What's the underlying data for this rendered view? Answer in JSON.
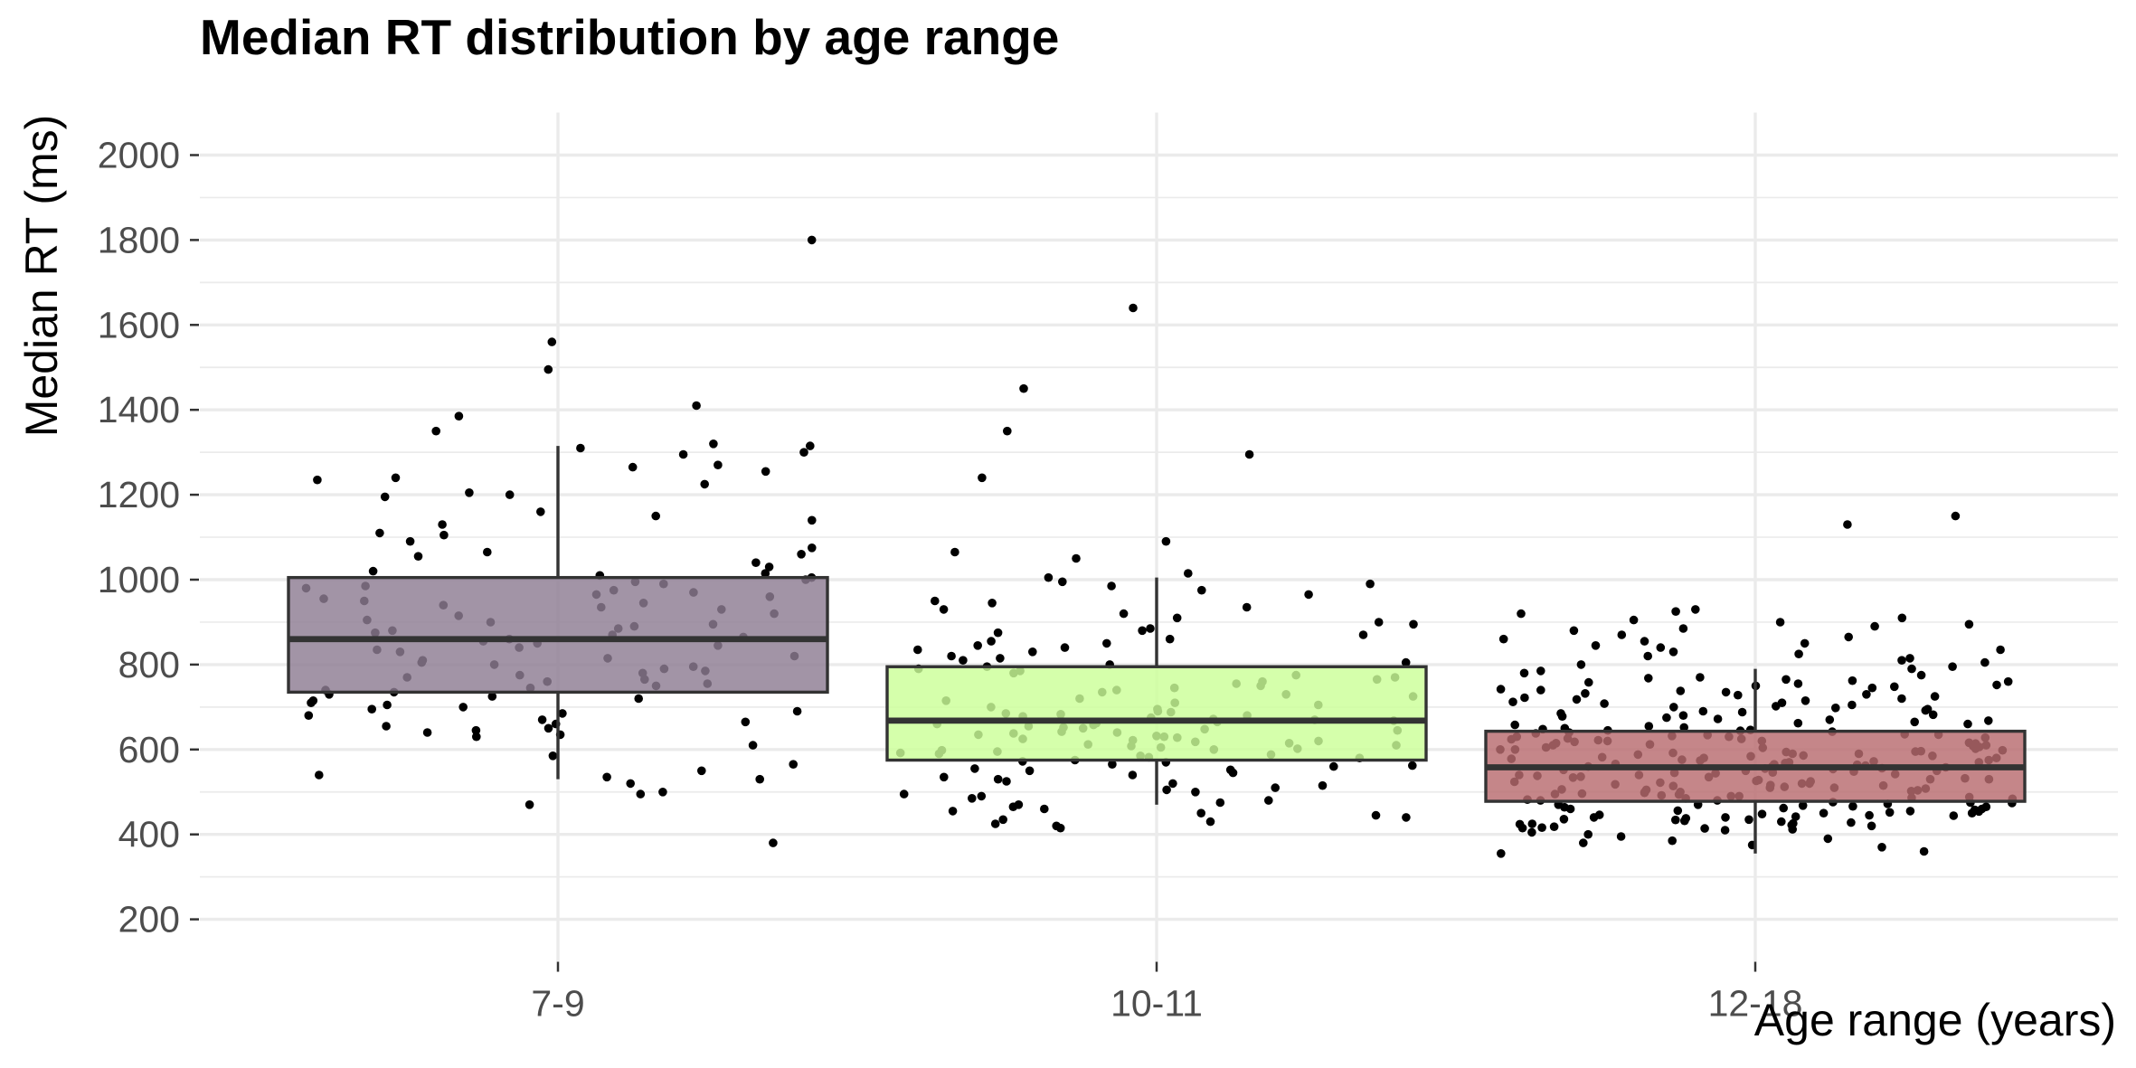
{
  "chart_data": {
    "type": "boxplot",
    "title": "Median RT distribution by age range",
    "xlabel": "Age range (years)",
    "ylabel": "Median RT (ms)",
    "ylim": [
      100,
      2100
    ],
    "yticks": [
      200,
      400,
      600,
      800,
      1000,
      1200,
      1400,
      1600,
      1800,
      2000
    ],
    "grid": true,
    "legend": "none",
    "categories": [
      "7-9",
      "10-11",
      "12-18"
    ],
    "boxes": [
      {
        "category": "7-9",
        "color": "#8E7D93",
        "whisker_low": 530,
        "q1": 735,
        "median": 860,
        "q3": 1005,
        "whisker_high": 1315
      },
      {
        "category": "10-11",
        "color": "#CCFF99",
        "whisker_low": 470,
        "q1": 575,
        "median": 668,
        "q3": 795,
        "whisker_high": 1005
      },
      {
        "category": "12-18",
        "color": "#B86B6F",
        "whisker_low": 355,
        "q1": 478,
        "median": 558,
        "q3": 643,
        "whisker_high": 790
      }
    ],
    "points": [
      {
        "category": "7-9",
        "values": [
          1560,
          1800,
          1495,
          1410,
          1385,
          1350,
          1320,
          1315,
          1310,
          1300,
          1295,
          1270,
          1265,
          1255,
          1240,
          1235,
          1225,
          1205,
          1200,
          1195,
          1160,
          1150,
          1140,
          1130,
          1110,
          1105,
          1090,
          1075,
          1065,
          1060,
          1055,
          1040,
          1030,
          1020,
          1015,
          1010,
          1005,
          1000,
          995,
          990,
          985,
          980,
          975,
          970,
          965,
          960,
          955,
          950,
          945,
          940,
          935,
          930,
          920,
          915,
          905,
          900,
          895,
          890,
          885,
          880,
          875,
          870,
          865,
          860,
          855,
          850,
          845,
          840,
          835,
          830,
          820,
          815,
          810,
          805,
          800,
          795,
          790,
          785,
          780,
          775,
          770,
          765,
          760,
          755,
          750,
          745,
          740,
          735,
          730,
          725,
          720,
          715,
          710,
          705,
          700,
          695,
          690,
          685,
          680,
          670,
          665,
          660,
          655,
          650,
          645,
          640,
          635,
          630,
          610,
          585,
          565,
          550,
          540,
          535,
          530,
          520,
          500,
          495,
          470,
          380
        ]
      },
      {
        "category": "10-11",
        "values": [
          1640,
          1450,
          1350,
          1295,
          1240,
          1090,
          1065,
          1050,
          1015,
          1005,
          995,
          990,
          985,
          975,
          965,
          950,
          945,
          935,
          930,
          920,
          910,
          900,
          895,
          885,
          880,
          875,
          870,
          860,
          855,
          850,
          845,
          840,
          835,
          830,
          820,
          815,
          810,
          805,
          800,
          795,
          790,
          785,
          780,
          775,
          770,
          765,
          760,
          755,
          750,
          745,
          740,
          735,
          730,
          725,
          720,
          715,
          710,
          705,
          700,
          695,
          690,
          688,
          685,
          683,
          680,
          678,
          675,
          672,
          670,
          668,
          665,
          662,
          660,
          658,
          655,
          652,
          650,
          648,
          645,
          642,
          640,
          638,
          635,
          632,
          630,
          628,
          625,
          622,
          620,
          618,
          615,
          612,
          610,
          608,
          605,
          602,
          600,
          598,
          595,
          592,
          590,
          588,
          585,
          582,
          580,
          575,
          572,
          570,
          565,
          562,
          560,
          555,
          552,
          550,
          545,
          540,
          535,
          530,
          525,
          520,
          515,
          510,
          505,
          500,
          495,
          490,
          485,
          480,
          475,
          470,
          465,
          460,
          455,
          450,
          445,
          440,
          435,
          430,
          425,
          420,
          415
        ]
      },
      {
        "category": "12-18",
        "values": [
          1150,
          1130,
          930,
          925,
          920,
          910,
          905,
          900,
          895,
          890,
          885,
          880,
          870,
          865,
          860,
          855,
          850,
          845,
          840,
          835,
          830,
          825,
          820,
          815,
          810,
          805,
          800,
          795,
          790,
          785,
          780,
          775,
          770,
          768,
          765,
          762,
          760,
          758,
          755,
          752,
          750,
          748,
          745,
          742,
          740,
          738,
          735,
          732,
          730,
          728,
          725,
          722,
          720,
          718,
          715,
          712,
          710,
          708,
          705,
          702,
          700,
          698,
          695,
          692,
          690,
          688,
          685,
          682,
          680,
          678,
          675,
          672,
          670,
          668,
          665,
          662,
          660,
          658,
          655,
          652,
          650,
          648,
          646,
          644,
          642,
          640,
          638,
          636,
          634,
          632,
          630,
          628,
          626,
          624,
          622,
          620,
          618,
          616,
          614,
          612,
          610,
          608,
          606,
          604,
          602,
          600,
          598,
          596,
          594,
          592,
          590,
          588,
          586,
          584,
          582,
          580,
          578,
          576,
          574,
          572,
          570,
          568,
          566,
          564,
          562,
          560,
          558,
          556,
          554,
          552,
          550,
          548,
          546,
          544,
          542,
          540,
          538,
          536,
          534,
          532,
          530,
          528,
          526,
          524,
          522,
          520,
          518,
          516,
          514,
          512,
          510,
          508,
          506,
          504,
          502,
          500,
          498,
          496,
          494,
          492,
          490,
          488,
          486,
          484,
          482,
          480,
          478,
          476,
          474,
          472,
          470,
          468,
          466,
          464,
          462,
          460,
          458,
          456,
          454,
          452,
          450,
          448,
          446,
          444,
          442,
          440,
          438,
          436,
          434,
          432,
          430,
          428,
          426,
          424,
          422,
          420,
          418,
          416,
          414,
          412,
          410,
          405,
          400,
          395,
          390,
          385,
          380,
          375,
          370,
          360,
          355,
          560,
          570,
          580,
          590,
          600,
          610,
          620,
          630,
          550,
          540,
          530,
          520,
          510,
          500,
          490,
          480,
          470,
          460,
          450,
          440,
          565,
          575,
          585,
          595,
          605,
          615,
          625,
          635,
          645,
          555,
          545,
          535,
          525,
          515,
          505,
          495,
          485,
          475,
          465,
          455,
          445,
          435,
          425,
          415
        ]
      }
    ]
  }
}
